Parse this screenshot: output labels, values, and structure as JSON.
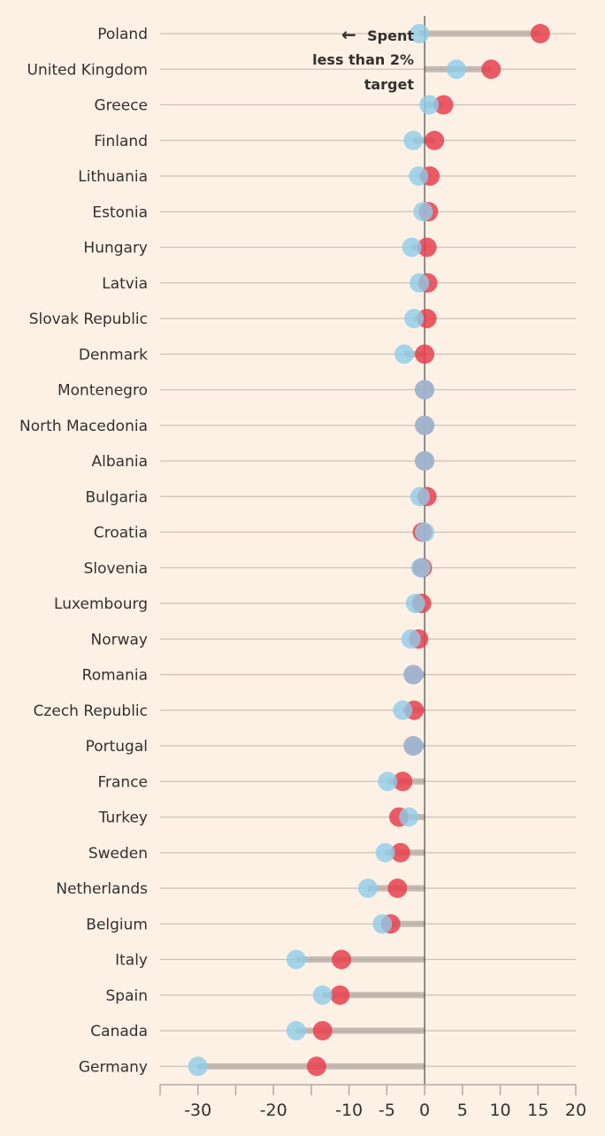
{
  "colors": {
    "background": "#fdf1e6",
    "gridline": "#cdbfb4",
    "connector": "#b3a9a2",
    "marker_red": "#e8414f",
    "marker_blue": "#8fcde9",
    "text": "#33302e",
    "zero_line": "#4a4a4a"
  },
  "annotation": {
    "arrow": "←",
    "lines": [
      "Spent",
      "less than 2%",
      "target"
    ]
  },
  "chart_data": {
    "type": "scatter",
    "subtype": "dumbbell",
    "orientation": "horizontal",
    "title": "",
    "xlabel": "",
    "ylabel": "",
    "xlim": [
      -35,
      20
    ],
    "x_ticks": [
      -30,
      -20,
      -10,
      -5,
      0,
      5,
      10,
      15,
      20
    ],
    "x_tick_labels": [
      "-30",
      "-20",
      "-10",
      "-5",
      "0",
      "5",
      "10",
      "15",
      "20"
    ],
    "grid": true,
    "legend": "none",
    "categories": [
      "Poland",
      "United Kingdom",
      "Greece",
      "Finland",
      "Lithuania",
      "Estonia",
      "Hungary",
      "Latvia",
      "Slovak Republic",
      "Denmark",
      "Montenegro",
      "North Macedonia",
      "Albania",
      "Bulgaria",
      "Croatia",
      "Slovenia",
      "Luxembourg",
      "Norway",
      "Romania",
      "Czech Republic",
      "Portugal",
      "France",
      "Turkey",
      "Sweden",
      "Netherlands",
      "Belgium",
      "Italy",
      "Spain",
      "Canada",
      "Germany"
    ],
    "series": [
      {
        "color": "#e8414f",
        "values": [
          15.3,
          8.8,
          2.5,
          1.3,
          0.7,
          0.5,
          0.3,
          0.4,
          0.3,
          0.0,
          0.0,
          0.0,
          0.0,
          0.3,
          -0.3,
          -0.3,
          -0.4,
          -0.8,
          -1.5,
          -1.4,
          -1.5,
          -2.9,
          -3.4,
          -3.2,
          -3.6,
          -4.5,
          -11.0,
          -11.2,
          -13.5,
          -14.3
        ]
      },
      {
        "color": "#8fcde9",
        "values": [
          -0.7,
          4.2,
          0.6,
          -1.5,
          -0.8,
          -0.2,
          -1.7,
          -0.7,
          -1.4,
          -2.7,
          0.0,
          0.0,
          0.0,
          -0.6,
          0.0,
          -0.5,
          -1.2,
          -1.8,
          -1.5,
          -2.9,
          -1.5,
          -4.9,
          -2.1,
          -5.2,
          -7.5,
          -5.6,
          -17.0,
          -13.5,
          -17.0,
          -30.0
        ]
      }
    ]
  }
}
